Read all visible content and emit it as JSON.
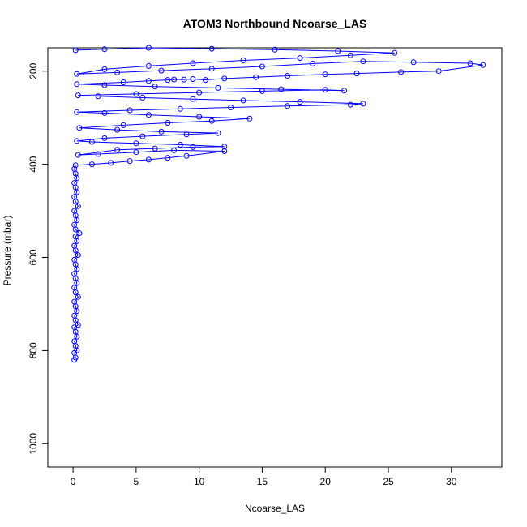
{
  "chart_data": {
    "type": "line",
    "title": "ATOM3 Northbound Ncoarse_LAS",
    "xlabel": "Ncoarse_LAS",
    "ylabel": "Pressure (mbar)",
    "xlim": [
      -2,
      34
    ],
    "ylim": [
      1050,
      150
    ],
    "y_reversed": true,
    "x_ticks": [
      0,
      5,
      10,
      15,
      20,
      25,
      30
    ],
    "y_ticks": [
      200,
      400,
      600,
      800,
      1000
    ],
    "grid": false,
    "legend": "none",
    "colors": {
      "series": "#0000ff",
      "axes": "#000000"
    },
    "series": [
      {
        "style": "lines+open-circles",
        "points": [
          [
            0.1,
            820
          ],
          [
            0.2,
            815
          ],
          [
            0.1,
            805
          ],
          [
            0.3,
            800
          ],
          [
            0.2,
            790
          ],
          [
            0.1,
            780
          ],
          [
            0.3,
            770
          ],
          [
            0.2,
            760
          ],
          [
            0.1,
            750
          ],
          [
            0.4,
            745
          ],
          [
            0.2,
            735
          ],
          [
            0.1,
            725
          ],
          [
            0.3,
            715
          ],
          [
            0.2,
            705
          ],
          [
            0.1,
            695
          ],
          [
            0.4,
            685
          ],
          [
            0.2,
            675
          ],
          [
            0.1,
            665
          ],
          [
            0.3,
            655
          ],
          [
            0.2,
            645
          ],
          [
            0.1,
            635
          ],
          [
            0.3,
            625
          ],
          [
            0.2,
            615
          ],
          [
            0.1,
            605
          ],
          [
            0.4,
            595
          ],
          [
            0.2,
            585
          ],
          [
            0.1,
            575
          ],
          [
            0.3,
            565
          ],
          [
            0.2,
            555
          ],
          [
            0.5,
            548
          ],
          [
            0.2,
            540
          ],
          [
            0.1,
            530
          ],
          [
            0.3,
            520
          ],
          [
            0.2,
            510
          ],
          [
            0.1,
            500
          ],
          [
            0.4,
            490
          ],
          [
            0.2,
            480
          ],
          [
            0.1,
            470
          ],
          [
            0.3,
            460
          ],
          [
            0.2,
            450
          ],
          [
            0.1,
            440
          ],
          [
            0.3,
            430
          ],
          [
            0.2,
            420
          ],
          [
            0.1,
            410
          ],
          [
            0.2,
            402
          ],
          [
            1.5,
            400
          ],
          [
            3.0,
            397
          ],
          [
            4.5,
            393
          ],
          [
            6.0,
            390
          ],
          [
            7.5,
            386
          ],
          [
            9.0,
            382
          ],
          [
            12.0,
            372
          ],
          [
            8.0,
            370
          ],
          [
            5.0,
            374
          ],
          [
            2.0,
            378
          ],
          [
            0.4,
            380
          ],
          [
            3.5,
            369
          ],
          [
            6.5,
            366
          ],
          [
            9.5,
            363
          ],
          [
            12.0,
            362
          ],
          [
            8.5,
            358
          ],
          [
            5.0,
            355
          ],
          [
            1.5,
            352
          ],
          [
            0.3,
            350
          ],
          [
            2.5,
            344
          ],
          [
            5.5,
            340
          ],
          [
            9.0,
            336
          ],
          [
            11.5,
            333
          ],
          [
            7.0,
            330
          ],
          [
            3.5,
            326
          ],
          [
            0.5,
            322
          ],
          [
            4.0,
            316
          ],
          [
            7.5,
            311
          ],
          [
            11.0,
            307
          ],
          [
            14.0,
            302
          ],
          [
            10.0,
            298
          ],
          [
            6.0,
            294
          ],
          [
            2.5,
            290
          ],
          [
            0.3,
            288
          ],
          [
            4.5,
            284
          ],
          [
            8.5,
            281
          ],
          [
            12.5,
            278
          ],
          [
            17.0,
            275
          ],
          [
            22.0,
            272
          ],
          [
            23.0,
            270
          ],
          [
            18.0,
            266
          ],
          [
            13.5,
            263
          ],
          [
            9.5,
            260
          ],
          [
            5.5,
            257
          ],
          [
            2.0,
            254
          ],
          [
            0.4,
            252
          ],
          [
            5.0,
            249
          ],
          [
            10.0,
            246
          ],
          [
            15.0,
            243
          ],
          [
            20.0,
            240
          ],
          [
            21.5,
            242
          ],
          [
            16.5,
            239
          ],
          [
            11.5,
            236
          ],
          [
            6.5,
            233
          ],
          [
            2.5,
            230
          ],
          [
            0.3,
            228
          ],
          [
            4.0,
            224
          ],
          [
            6.0,
            221
          ],
          [
            7.5,
            219
          ],
          [
            8.0,
            218
          ],
          [
            8.8,
            218
          ],
          [
            9.5,
            217
          ],
          [
            10.5,
            219
          ],
          [
            12.0,
            216
          ],
          [
            14.5,
            213
          ],
          [
            17.0,
            210
          ],
          [
            20.0,
            207
          ],
          [
            22.5,
            205
          ],
          [
            26.0,
            202
          ],
          [
            29.0,
            200
          ],
          [
            32.5,
            187
          ],
          [
            31.5,
            183
          ],
          [
            27.0,
            181
          ],
          [
            23.0,
            179
          ],
          [
            19.0,
            184
          ],
          [
            15.0,
            190
          ],
          [
            11.0,
            195
          ],
          [
            7.0,
            199
          ],
          [
            3.5,
            203
          ],
          [
            0.3,
            206
          ],
          [
            2.5,
            196
          ],
          [
            6.0,
            189
          ],
          [
            9.5,
            183
          ],
          [
            13.5,
            177
          ],
          [
            18.0,
            172
          ],
          [
            22.0,
            166
          ],
          [
            25.5,
            161
          ],
          [
            21.0,
            157
          ],
          [
            16.0,
            154
          ],
          [
            11.0,
            152
          ],
          [
            6.0,
            150
          ],
          [
            2.5,
            153
          ],
          [
            0.2,
            155
          ]
        ]
      }
    ]
  }
}
